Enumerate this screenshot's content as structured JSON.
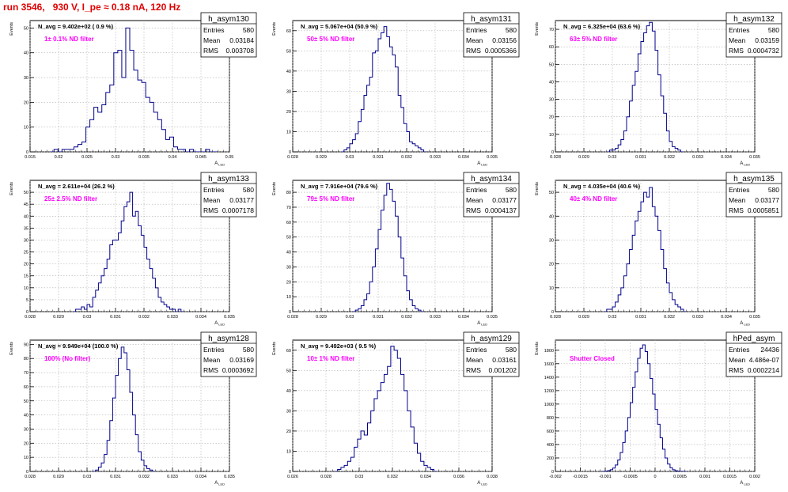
{
  "page_title": "run 3546,   930 V, I_pe ≈ 0.18 nA, 120 Hz",
  "chart_data": [
    {
      "type": "histogram",
      "hist_name": "h_asym130",
      "stats": {
        "entries_label": "Entries",
        "entries": "580",
        "mean_label": "Mean",
        "mean": "0.03184",
        "rms_label": "RMS",
        "rms": "0.003708"
      },
      "navg": "N_avg = 9.402e+02 ( 0.9 %)",
      "filter": "1± 0.1% ND filter",
      "ylabel": "Events",
      "xlabel": "A",
      "xlabel_sub": "LED",
      "xlim": [
        0.015,
        0.05
      ],
      "ylim": [
        0,
        53
      ],
      "xticks": [
        0.015,
        0.02,
        0.025,
        0.03,
        0.035,
        0.04,
        0.045,
        0.05
      ],
      "yticks": [
        0,
        10,
        20,
        30,
        40,
        50
      ],
      "bins": {
        "start": 0.0185,
        "width": 0.0007,
        "counts": [
          0,
          1,
          0,
          1,
          1,
          1,
          2,
          3,
          4,
          10,
          13,
          18,
          16,
          19,
          24,
          27,
          40,
          41,
          30,
          50,
          41,
          33,
          29,
          28,
          22,
          20,
          16,
          13,
          9,
          5,
          6,
          2,
          1,
          1,
          0,
          1,
          0,
          0,
          0,
          1,
          0,
          0
        ]
      }
    },
    {
      "type": "histogram",
      "hist_name": "h_asym131",
      "stats": {
        "entries_label": "Entries",
        "entries": "580",
        "mean_label": "Mean",
        "mean": "0.03156",
        "rms_label": "RMS",
        "rms": "0.0005366"
      },
      "navg": "N_avg = 5.067e+04 (50.9 %)",
      "filter": "50± 5% ND filter",
      "ylabel": "Events",
      "xlabel": "A",
      "xlabel_sub": "LED",
      "xlim": [
        0.028,
        0.035
      ],
      "ylim": [
        0,
        65
      ],
      "xticks": [
        0.028,
        0.029,
        0.03,
        0.031,
        0.032,
        0.033,
        0.034,
        0.035
      ],
      "yticks": [
        0,
        10,
        20,
        30,
        40,
        50,
        60
      ],
      "bins": {
        "start": 0.0297,
        "width": 0.0001,
        "counts": [
          0,
          1,
          2,
          4,
          6,
          9,
          15,
          21,
          28,
          33,
          37,
          49,
          50,
          56,
          59,
          62,
          57,
          52,
          48,
          42,
          28,
          22,
          14,
          10,
          5,
          4,
          3,
          2,
          1,
          0
        ]
      }
    },
    {
      "type": "histogram",
      "hist_name": "h_asym132",
      "stats": {
        "entries_label": "Entries",
        "entries": "580",
        "mean_label": "Mean",
        "mean": "0.03159",
        "rms_label": "RMS",
        "rms": "0.0004732"
      },
      "navg": "N_avg = 6.325e+04 (63.6 %)",
      "filter": "63± 5% ND filter",
      "ylabel": "Events",
      "xlabel": "A",
      "xlabel_sub": "LED",
      "xlim": [
        0.028,
        0.035
      ],
      "ylim": [
        0,
        75
      ],
      "xticks": [
        0.028,
        0.029,
        0.03,
        0.031,
        0.032,
        0.033,
        0.034,
        0.035
      ],
      "yticks": [
        0,
        10,
        20,
        30,
        40,
        50,
        60,
        70
      ],
      "bins": {
        "start": 0.0298,
        "width": 0.0001,
        "counts": [
          0,
          1,
          1,
          2,
          4,
          7,
          12,
          20,
          29,
          38,
          46,
          56,
          63,
          68,
          72,
          74,
          69,
          58,
          44,
          32,
          22,
          12,
          6,
          3,
          2,
          1,
          0
        ]
      }
    },
    {
      "type": "histogram",
      "hist_name": "h_asym133",
      "stats": {
        "entries_label": "Entries",
        "entries": "580",
        "mean_label": "Mean",
        "mean": "0.03177",
        "rms_label": "RMS",
        "rms": "0.0007178"
      },
      "navg": "N_avg = 2.611e+04 (26.2 %)",
      "filter": "25± 2.5% ND filter",
      "ylabel": "Events",
      "xlabel": "A",
      "xlabel_sub": "LED",
      "xlim": [
        0.028,
        0.035
      ],
      "ylim": [
        0,
        55
      ],
      "xticks": [
        0.028,
        0.029,
        0.03,
        0.031,
        0.032,
        0.033,
        0.034,
        0.035
      ],
      "yticks": [
        0,
        5,
        10,
        15,
        20,
        25,
        30,
        35,
        40,
        45,
        50
      ],
      "bins": {
        "start": 0.0295,
        "width": 0.0001,
        "counts": [
          0,
          1,
          1,
          2,
          1,
          3,
          2,
          6,
          9,
          12,
          15,
          18,
          22,
          28,
          30,
          30,
          33,
          38,
          44,
          46,
          50,
          40,
          42,
          36,
          32,
          27,
          22,
          18,
          14,
          10,
          6,
          4,
          3,
          2,
          1,
          1,
          0,
          1,
          0
        ]
      }
    },
    {
      "type": "histogram",
      "hist_name": "h_asym134",
      "stats": {
        "entries_label": "Entries",
        "entries": "580",
        "mean_label": "Mean",
        "mean": "0.03177",
        "rms_label": "RMS",
        "rms": "0.0004137"
      },
      "navg": "N_avg = 7.916e+04 (79.6 %)",
      "filter": "79± 5% ND filter",
      "ylabel": "Events",
      "xlabel": "A",
      "xlabel_sub": "LED",
      "xlim": [
        0.028,
        0.035
      ],
      "ylim": [
        0,
        88
      ],
      "xticks": [
        0.028,
        0.029,
        0.03,
        0.031,
        0.032,
        0.033,
        0.034,
        0.035
      ],
      "yticks": [
        0,
        10,
        20,
        30,
        40,
        50,
        60,
        70,
        80
      ],
      "bins": {
        "start": 0.0301,
        "width": 0.0001,
        "counts": [
          0,
          1,
          2,
          4,
          8,
          12,
          20,
          30,
          42,
          55,
          68,
          78,
          86,
          82,
          74,
          64,
          50,
          36,
          24,
          14,
          8,
          4,
          2,
          1,
          0
        ]
      }
    },
    {
      "type": "histogram",
      "hist_name": "h_asym135",
      "stats": {
        "entries_label": "Entries",
        "entries": "580",
        "mean_label": "Mean",
        "mean": "0.03177",
        "rms_label": "RMS",
        "rms": "0.0005851"
      },
      "navg": "N_avg = 4.035e+04 (40.6 %)",
      "filter": "40± 4% ND filter",
      "ylabel": "Events",
      "xlabel": "A",
      "xlabel_sub": "LED",
      "xlim": [
        0.028,
        0.035
      ],
      "ylim": [
        0,
        55
      ],
      "xticks": [
        0.028,
        0.029,
        0.03,
        0.031,
        0.032,
        0.033,
        0.034,
        0.035
      ],
      "yticks": [
        0,
        10,
        20,
        30,
        40,
        50
      ],
      "bins": {
        "start": 0.0297,
        "width": 0.0001,
        "counts": [
          0,
          1,
          1,
          2,
          4,
          7,
          10,
          15,
          20,
          26,
          32,
          38,
          42,
          46,
          50,
          48,
          52,
          44,
          40,
          34,
          26,
          18,
          12,
          8,
          5,
          3,
          2,
          1,
          0
        ]
      }
    },
    {
      "type": "histogram",
      "hist_name": "h_asym128",
      "stats": {
        "entries_label": "Entries",
        "entries": "580",
        "mean_label": "Mean",
        "mean": "0.03169",
        "rms_label": "RMS",
        "rms": "0.0003692"
      },
      "navg": "N_avg = 9.949e+04 (100.0 %)",
      "filter": "100% (No filter)",
      "ylabel": "Events",
      "xlabel": "A",
      "xlabel_sub": "LED",
      "xlim": [
        0.028,
        0.035
      ],
      "ylim": [
        0,
        93
      ],
      "xticks": [
        0.028,
        0.029,
        0.03,
        0.031,
        0.032,
        0.033,
        0.034,
        0.035
      ],
      "yticks": [
        0,
        10,
        20,
        30,
        40,
        50,
        60,
        70,
        80,
        90
      ],
      "bins": {
        "start": 0.0302,
        "width": 0.0001,
        "counts": [
          0,
          1,
          3,
          6,
          12,
          22,
          36,
          52,
          68,
          80,
          88,
          84,
          72,
          56,
          40,
          26,
          14,
          8,
          4,
          2,
          1,
          0
        ]
      }
    },
    {
      "type": "histogram",
      "hist_name": "h_asym129",
      "stats": {
        "entries_label": "Entries",
        "entries": "580",
        "mean_label": "Mean",
        "mean": "0.03161",
        "rms_label": "RMS",
        "rms": "0.001202"
      },
      "navg": "N_avg = 9.492e+03 ( 9.5 %)",
      "filter": "10± 1% ND filter",
      "ylabel": "Events",
      "xlabel": "A",
      "xlabel_sub": "LED",
      "xlim": [
        0.026,
        0.038
      ],
      "ylim": [
        0,
        65
      ],
      "xticks": [
        0.026,
        0.028,
        0.03,
        0.032,
        0.034,
        0.036,
        0.038
      ],
      "yticks": [
        0,
        10,
        20,
        30,
        40,
        50,
        60
      ],
      "bins": {
        "start": 0.0285,
        "width": 0.0002,
        "counts": [
          0,
          1,
          2,
          3,
          5,
          7,
          12,
          16,
          20,
          18,
          24,
          30,
          36,
          40,
          44,
          48,
          52,
          62,
          60,
          56,
          48,
          40,
          30,
          22,
          14,
          9,
          5,
          3,
          2,
          1,
          0
        ]
      }
    },
    {
      "type": "histogram",
      "hist_name": "hPed_asym",
      "stats": {
        "entries_label": "Entries",
        "entries": "24436",
        "mean_label": "Mean",
        "mean": "4.486e-07",
        "rms_label": "RMS",
        "rms": "0.0002214"
      },
      "navg": "",
      "filter": "Shutter Closed",
      "ylabel": "Events",
      "xlabel": "A",
      "xlabel_sub": "LED",
      "xlim": [
        -0.002,
        0.002
      ],
      "ylim": [
        0,
        1950
      ],
      "xticks": [
        -0.002,
        -0.0015,
        -0.001,
        -0.0005,
        0,
        0.0005,
        0.001,
        0.0015,
        0.002
      ],
      "yticks": [
        0,
        200,
        400,
        600,
        800,
        1000,
        1200,
        1400,
        1600,
        1800
      ],
      "bins": {
        "start": -0.0011,
        "width": 5e-05,
        "counts": [
          0,
          2,
          5,
          12,
          25,
          50,
          95,
          170,
          280,
          430,
          600,
          800,
          1020,
          1250,
          1480,
          1680,
          1830,
          1880,
          1780,
          1600,
          1380,
          1150,
          920,
          700,
          500,
          330,
          200,
          110,
          55,
          25,
          10,
          4,
          2,
          1,
          0
        ]
      }
    }
  ]
}
